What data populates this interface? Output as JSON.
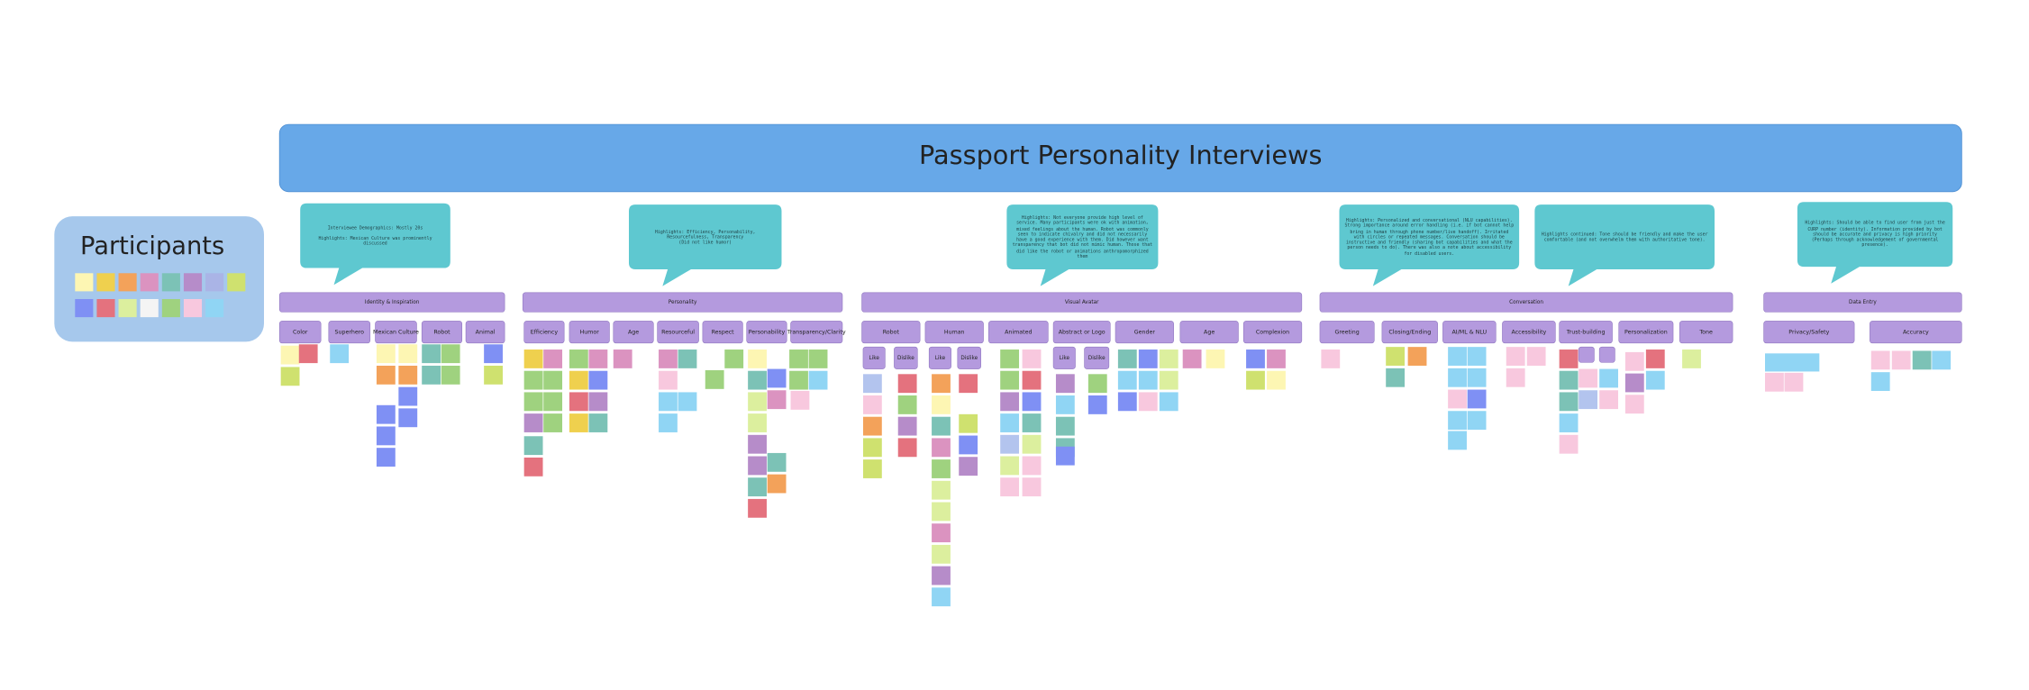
{
  "title": "Passport Personality Interviews",
  "participants": {
    "title": "Participants"
  },
  "sections": [
    {
      "title": "Identity & Inspiration",
      "highlights": [
        "Interviewee Demographics: Mostly 20s\n\nHighlights: Mexican Culture was prominently discussed"
      ],
      "groups": [
        {
          "label": "Color"
        },
        {
          "label": "Superhero"
        },
        {
          "label": "Mexican Culture"
        },
        {
          "label": "Robot"
        },
        {
          "label": "Animal"
        }
      ]
    },
    {
      "title": "Personality",
      "highlights": [
        "Highlights: Efficiency, Personability, Resourcefulness, Transparency\n(Did not like humor)"
      ],
      "groups": [
        {
          "label": "Efficiency"
        },
        {
          "label": "Humor"
        },
        {
          "label": "Age"
        },
        {
          "label": "Resourceful"
        },
        {
          "label": "Respect"
        },
        {
          "label": "Personability"
        },
        {
          "label": "Transparency/Clarity"
        }
      ]
    },
    {
      "title": "Visual Avatar",
      "highlights": [
        "Highlights: Not everyone provide high level of service. Many participants were ok with animation, mixed feelings about the human. Robot was commonly seen to indicate chivalry and did not necessarily have a good experience with them. Did however want transparency that bot did not mimic human. Those that did like the robot or animations anthropomorphized them"
      ],
      "groups": [
        {
          "label": "Robot",
          "sublabels": [
            "Like",
            "Dislike"
          ]
        },
        {
          "label": "Human",
          "sublabels": [
            "Like",
            "Dislike"
          ]
        },
        {
          "label": "Animated"
        },
        {
          "label": "Abstract or Logo",
          "sublabels": [
            "Like",
            "Dislike"
          ]
        },
        {
          "label": "Gender"
        },
        {
          "label": "Age"
        },
        {
          "label": "Complexion"
        }
      ]
    },
    {
      "title": "Conversation",
      "highlights": [
        "Highlights: Personalized and conversational (NLU capabilities). Strong importance around error handling (i.e. if bot cannot help bring in human through phone number/live handoff). Irritated with circles or repeated messages. Conversation should be instructive and friendly (sharing bot capabilities and what the person needs to do). There was also a note about accessibility for disabled users.",
        "Highlights continued: Tone should be friendly and make the user comfortable (and not overwhelm them with authoritative tone)."
      ],
      "groups": [
        {
          "label": "Greeting"
        },
        {
          "label": "Closing/Ending"
        },
        {
          "label": "AI/ML & NLU"
        },
        {
          "label": "Accessibility"
        },
        {
          "label": "Trust-building"
        },
        {
          "label": "Personalization"
        },
        {
          "label": "Tone"
        }
      ]
    },
    {
      "title": "Data Entry",
      "highlights": [
        "Highlights: Should be able to find user from just the CURP number (identity). Information provided by bot should be accurate and privacy is high priority (Perhaps through acknowledgement of governmental presence)."
      ],
      "groups": [
        {
          "label": "Privacy/Safety"
        },
        {
          "label": "Accuracy"
        }
      ]
    }
  ]
}
